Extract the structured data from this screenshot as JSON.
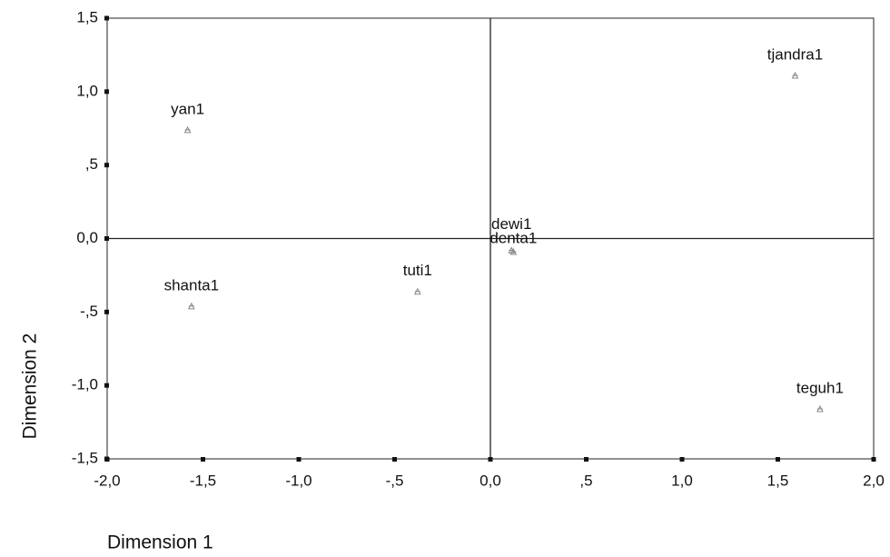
{
  "chart_data": {
    "type": "scatter",
    "x_label": "Dimension 1",
    "y_label": "Dimension 2",
    "labels": [
      "yan1",
      "tjandra1",
      "dewi1",
      "denta1",
      "tuti1",
      "shanta1",
      "teguh1"
    ],
    "x": [
      -1.58,
      1.59,
      0.11,
      0.12,
      -0.38,
      -1.56,
      1.72
    ],
    "values": [
      0.74,
      1.11,
      -0.08,
      -0.09,
      -0.36,
      -0.46,
      -1.16
    ],
    "color": "#888888",
    "xlim": [
      -2,
      2
    ],
    "ylim": [
      -1.5,
      1.5
    ],
    "xticks": [
      {
        "value": -2,
        "label": "-2,0"
      },
      {
        "value": -1.5,
        "label": "-1,5"
      },
      {
        "value": -1,
        "label": "-1,0"
      },
      {
        "value": -0.5,
        "label": "-,5"
      },
      {
        "value": 0,
        "label": "0,0"
      },
      {
        "value": 0.5,
        "label": ",5"
      },
      {
        "value": 1,
        "label": "1,0"
      },
      {
        "value": 1.5,
        "label": "1,5"
      },
      {
        "value": 2,
        "label": "2,0"
      }
    ],
    "yticks": [
      {
        "value": -1.5,
        "label": "-1,5"
      },
      {
        "value": -1,
        "label": "-1,0"
      },
      {
        "value": -0.5,
        "label": "-,5"
      },
      {
        "value": 0,
        "label": "0,0"
      },
      {
        "value": 0.5,
        "label": ",5"
      },
      {
        "value": 1,
        "label": "1,0"
      },
      {
        "value": 1.5,
        "label": "1,5"
      }
    ],
    "reference_lines": {
      "x": 0,
      "y": 0
    }
  }
}
